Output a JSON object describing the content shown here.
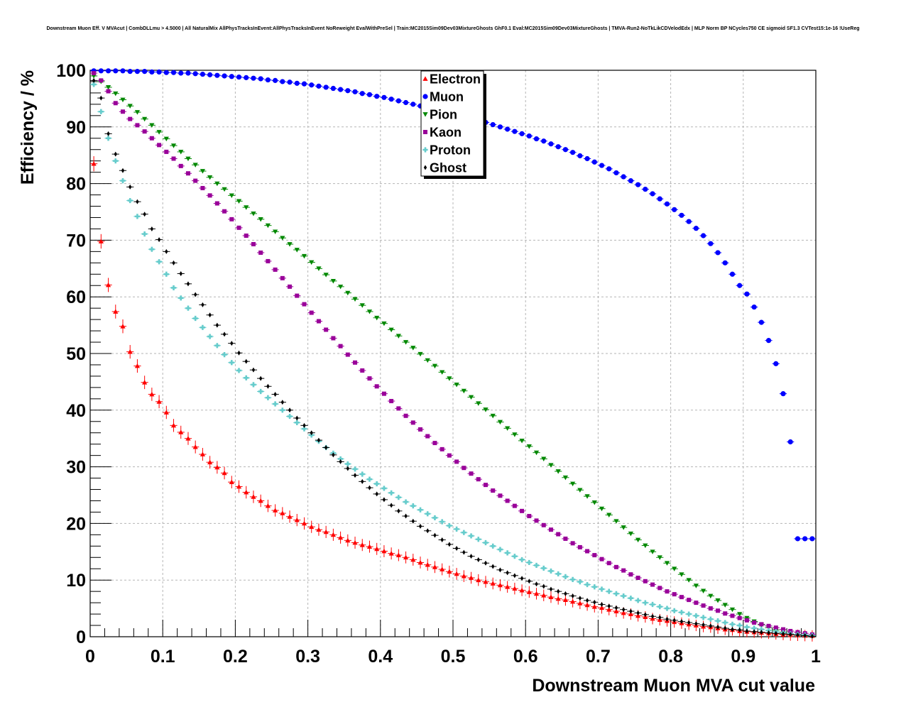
{
  "chart_data": {
    "type": "scatter",
    "title": "Downstream Muon Eff. V MVAcut | CombDLLmu > 4.5000 | All NaturalMix AllPhysTracksInEvent:AllPhysTracksInEvent NoReweight EvalWithPreSel | Train:MC2015Sim09Dev03MixtureGhosts GhF0.1 Eval:MC2015Sim09Dev03MixtureGhosts | TMVA-Run2-NoTkLikCDVelodEdx | MLP Norm BP NCycles750 CE sigmoid SF1.3 CVTest15:1e-16 !UseReg",
    "xlabel": "Downstream Muon MVA cut value",
    "ylabel": "Efficiency / %",
    "xlim": [
      0,
      1
    ],
    "ylim": [
      0,
      100
    ],
    "xticks": [
      "0",
      "0.1",
      "0.2",
      "0.3",
      "0.4",
      "0.5",
      "0.6",
      "0.7",
      "0.8",
      "0.9",
      "1"
    ],
    "yticks": [
      "0",
      "10",
      "20",
      "30",
      "40",
      "50",
      "60",
      "70",
      "80",
      "90",
      "100"
    ],
    "grid": true,
    "legend_position": "top-center",
    "x": [
      0.005,
      0.015,
      0.025,
      0.035,
      0.045,
      0.055,
      0.065,
      0.075,
      0.085,
      0.095,
      0.105,
      0.115,
      0.125,
      0.135,
      0.145,
      0.155,
      0.165,
      0.175,
      0.185,
      0.195,
      0.205,
      0.215,
      0.225,
      0.235,
      0.245,
      0.255,
      0.265,
      0.275,
      0.285,
      0.295,
      0.305,
      0.315,
      0.325,
      0.335,
      0.345,
      0.355,
      0.365,
      0.375,
      0.385,
      0.395,
      0.405,
      0.415,
      0.425,
      0.435,
      0.445,
      0.455,
      0.465,
      0.475,
      0.485,
      0.495,
      0.505,
      0.515,
      0.525,
      0.535,
      0.545,
      0.555,
      0.565,
      0.575,
      0.585,
      0.595,
      0.605,
      0.615,
      0.625,
      0.635,
      0.645,
      0.655,
      0.665,
      0.675,
      0.685,
      0.695,
      0.705,
      0.715,
      0.725,
      0.735,
      0.745,
      0.755,
      0.765,
      0.775,
      0.785,
      0.795,
      0.805,
      0.815,
      0.825,
      0.835,
      0.845,
      0.855,
      0.865,
      0.875,
      0.885,
      0.895,
      0.905,
      0.915,
      0.925,
      0.935,
      0.945,
      0.955,
      0.965,
      0.975,
      0.985,
      0.995
    ],
    "series": [
      {
        "name": "Electron",
        "color": "#ff0000",
        "marker": "triangle-up",
        "values": [
          83.5,
          69.8,
          62.1,
          57.4,
          54.8,
          50.3,
          47.8,
          44.9,
          42.8,
          41.5,
          39.6,
          37.3,
          36.1,
          35.0,
          33.5,
          32.2,
          30.8,
          29.9,
          28.9,
          27.3,
          26.5,
          25.5,
          24.7,
          24.0,
          23.1,
          22.3,
          21.8,
          21.2,
          20.6,
          20.0,
          19.4,
          18.9,
          18.5,
          18.0,
          17.5,
          17.0,
          16.6,
          16.2,
          15.9,
          15.5,
          15.1,
          14.7,
          14.4,
          14.0,
          13.6,
          13.1,
          12.7,
          12.3,
          11.9,
          11.5,
          11.1,
          10.7,
          10.4,
          10.0,
          9.7,
          9.4,
          9.1,
          8.8,
          8.5,
          8.2,
          7.9,
          7.6,
          7.3,
          7.0,
          6.7,
          6.5,
          6.2,
          5.9,
          5.6,
          5.3,
          5.1,
          4.8,
          4.5,
          4.2,
          4.0,
          3.7,
          3.5,
          3.2,
          3.0,
          2.8,
          2.6,
          2.4,
          2.2,
          2.0,
          1.8,
          1.7,
          1.5,
          1.3,
          1.2,
          1.0,
          0.9,
          0.8,
          0.7,
          0.6,
          0.5,
          0.4,
          0.3,
          0.25,
          0.2,
          0.15
        ]
      },
      {
        "name": "Muon",
        "color": "#0000ff",
        "marker": "circle",
        "values": [
          99.9,
          99.9,
          99.9,
          99.9,
          99.9,
          99.8,
          99.8,
          99.8,
          99.7,
          99.7,
          99.6,
          99.6,
          99.5,
          99.5,
          99.4,
          99.3,
          99.2,
          99.1,
          99.0,
          98.9,
          98.8,
          98.7,
          98.6,
          98.5,
          98.3,
          98.2,
          98.0,
          97.9,
          97.7,
          97.6,
          97.4,
          97.2,
          97.0,
          96.8,
          96.6,
          96.4,
          96.2,
          95.9,
          95.7,
          95.4,
          95.2,
          94.9,
          94.6,
          94.3,
          94.0,
          93.7,
          93.4,
          93.1,
          92.8,
          92.5,
          92.2,
          91.8,
          91.5,
          91.1,
          90.8,
          90.4,
          90.0,
          89.6,
          89.2,
          88.8,
          88.4,
          87.9,
          87.5,
          87.0,
          86.5,
          86.0,
          85.5,
          84.9,
          84.4,
          83.8,
          83.2,
          82.6,
          81.9,
          81.2,
          80.5,
          79.8,
          79.0,
          78.2,
          77.3,
          76.4,
          75.4,
          74.4,
          73.3,
          72.1,
          70.8,
          69.4,
          67.8,
          66.0,
          64.0,
          62.0,
          60.5,
          58.2,
          55.5,
          52.3,
          48.2,
          42.9,
          34.4,
          17.3,
          17.3,
          17.3
        ]
      },
      {
        "name": "Pion",
        "color": "#008800",
        "marker": "triangle-down",
        "values": [
          99.0,
          98.0,
          97.0,
          95.9,
          94.8,
          93.7,
          92.6,
          91.4,
          90.3,
          89.1,
          87.9,
          86.7,
          85.6,
          84.4,
          83.3,
          82.2,
          81.1,
          80.0,
          79.0,
          77.9,
          76.9,
          75.8,
          74.7,
          73.7,
          72.6,
          71.5,
          70.4,
          69.3,
          68.3,
          67.2,
          66.1,
          65.0,
          63.9,
          62.8,
          61.8,
          60.7,
          59.6,
          58.5,
          57.4,
          56.3,
          55.3,
          54.2,
          53.1,
          52.0,
          51.0,
          49.9,
          48.8,
          47.8,
          46.7,
          45.6,
          44.5,
          43.4,
          42.3,
          41.2,
          40.1,
          39.0,
          37.9,
          36.8,
          35.7,
          34.6,
          33.6,
          32.5,
          31.4,
          30.3,
          29.2,
          28.1,
          27.0,
          25.9,
          24.8,
          23.7,
          22.6,
          21.5,
          20.4,
          19.3,
          18.2,
          17.1,
          16.1,
          15.0,
          14.0,
          13.0,
          12.0,
          11.0,
          10.0,
          9.0,
          8.1,
          7.2,
          6.4,
          5.6,
          4.8,
          4.0,
          3.3,
          2.7,
          2.1,
          1.6,
          1.2,
          0.8,
          0.5,
          0.3,
          0.2,
          0.1
        ]
      },
      {
        "name": "Kaon",
        "color": "#990099",
        "marker": "square",
        "values": [
          99.5,
          98.2,
          96.3,
          94.2,
          92.7,
          91.4,
          90.3,
          89.2,
          88.0,
          86.8,
          85.6,
          84.4,
          83.1,
          81.8,
          80.5,
          79.2,
          77.9,
          76.5,
          75.1,
          73.7,
          72.2,
          70.8,
          69.3,
          67.8,
          66.3,
          64.8,
          63.3,
          61.8,
          60.2,
          58.7,
          57.2,
          55.7,
          54.2,
          52.7,
          51.3,
          49.8,
          48.4,
          47.0,
          45.6,
          44.2,
          42.9,
          41.6,
          40.3,
          39.0,
          37.8,
          36.6,
          35.4,
          34.2,
          33.1,
          32.0,
          30.9,
          29.8,
          28.8,
          27.8,
          26.8,
          25.8,
          24.9,
          24.0,
          23.1,
          22.2,
          21.3,
          20.5,
          19.7,
          18.9,
          18.1,
          17.3,
          16.5,
          15.8,
          15.1,
          14.4,
          13.7,
          13.0,
          12.3,
          11.7,
          11.0,
          10.4,
          9.8,
          9.2,
          8.6,
          8.0,
          7.5,
          7.0,
          6.5,
          6.0,
          5.5,
          5.0,
          4.6,
          4.1,
          3.7,
          3.3,
          2.9,
          2.5,
          2.2,
          1.9,
          1.6,
          1.3,
          1.0,
          0.8,
          0.6,
          0.4
        ]
      },
      {
        "name": "Proton",
        "color": "#66cccc",
        "marker": "cross",
        "values": [
          97.5,
          92.7,
          88.0,
          84.0,
          80.5,
          77.0,
          74.2,
          71.1,
          68.4,
          66.2,
          64.0,
          61.6,
          59.8,
          58.0,
          56.2,
          54.6,
          53.0,
          51.4,
          49.8,
          48.4,
          47.0,
          45.7,
          44.5,
          43.3,
          42.2,
          41.1,
          40.0,
          38.9,
          37.8,
          36.7,
          35.6,
          34.5,
          33.4,
          32.4,
          31.4,
          30.5,
          29.6,
          28.7,
          27.8,
          27.0,
          26.2,
          25.4,
          24.6,
          23.8,
          23.1,
          22.4,
          21.7,
          21.0,
          20.3,
          19.6,
          19.0,
          18.4,
          17.8,
          17.2,
          16.6,
          16.0,
          15.4,
          14.8,
          14.2,
          13.6,
          13.1,
          12.6,
          12.1,
          11.6,
          11.1,
          10.6,
          10.1,
          9.7,
          9.2,
          8.8,
          8.4,
          8.0,
          7.6,
          7.2,
          6.8,
          6.4,
          6.0,
          5.7,
          5.3,
          5.0,
          4.6,
          4.3,
          4.0,
          3.7,
          3.4,
          3.1,
          2.8,
          2.5,
          2.2,
          2.0,
          1.7,
          1.5,
          1.3,
          1.1,
          0.9,
          0.7,
          0.5,
          0.4,
          0.3,
          0.2
        ]
      },
      {
        "name": "Ghost",
        "color": "#000000",
        "marker": "diamond",
        "values": [
          98.2,
          95.1,
          88.8,
          85.2,
          82.3,
          79.4,
          76.8,
          74.6,
          72.0,
          70.1,
          68.0,
          66.0,
          64.1,
          62.3,
          60.4,
          58.6,
          56.8,
          55.0,
          53.4,
          51.8,
          50.1,
          48.6,
          47.1,
          45.6,
          44.2,
          42.8,
          41.4,
          40.0,
          38.6,
          37.3,
          36.0,
          34.7,
          33.4,
          32.1,
          30.9,
          29.7,
          28.5,
          27.4,
          26.3,
          25.2,
          24.2,
          23.2,
          22.2,
          21.3,
          20.4,
          19.5,
          18.7,
          17.9,
          17.1,
          16.3,
          15.6,
          14.9,
          14.2,
          13.6,
          13.0,
          12.4,
          11.8,
          11.3,
          10.8,
          10.3,
          9.8,
          9.3,
          8.9,
          8.4,
          8.0,
          7.6,
          7.2,
          6.8,
          6.4,
          6.1,
          5.7,
          5.4,
          5.1,
          4.8,
          4.5,
          4.2,
          3.9,
          3.6,
          3.4,
          3.1,
          2.9,
          2.7,
          2.5,
          2.3,
          2.1,
          1.9,
          1.7,
          1.5,
          1.3,
          1.2,
          1.0,
          0.9,
          0.8,
          0.7,
          0.6,
          0.5,
          0.4,
          0.3,
          0.2,
          0.1
        ]
      }
    ]
  }
}
